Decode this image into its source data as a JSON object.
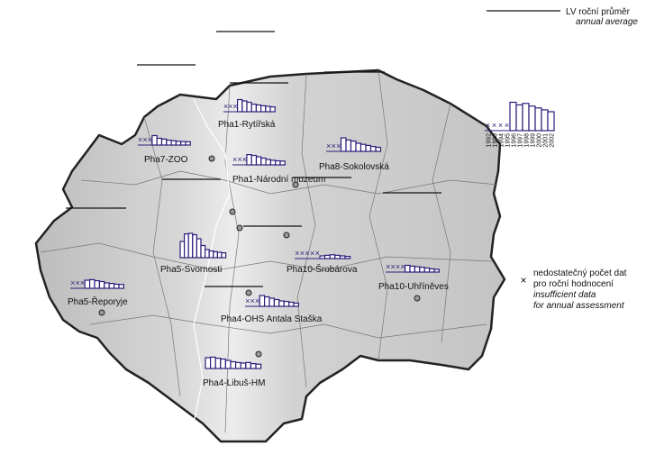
{
  "legend": {
    "line_label": "LV roční průměr",
    "line_label_en": "annual average",
    "years": [
      "1992",
      "1993",
      "1994",
      "1995",
      "1996",
      "1997",
      "1998",
      "1999",
      "2000",
      "2001",
      "2002"
    ],
    "sample_values": [
      null,
      null,
      null,
      null,
      75,
      68,
      72,
      65,
      60,
      55,
      50
    ],
    "no_data_label": [
      "nedostatečný počet dat",
      "pro roční hodnocení"
    ],
    "no_data_label_en": [
      "insufficient data",
      "for annual assessment"
    ]
  },
  "stations": [
    {
      "name": "Pha1-Rytířská",
      "values": [
        null,
        null,
        null,
        45,
        40,
        35,
        28,
        25,
        22,
        20,
        18
      ]
    },
    {
      "name": "Pha7-ZOO",
      "values": [
        null,
        null,
        null,
        35,
        25,
        22,
        18,
        16,
        14,
        13,
        12
      ]
    },
    {
      "name": "Pha8-Sokolovská",
      "values": [
        null,
        null,
        null,
        50,
        42,
        38,
        30,
        26,
        22,
        18,
        15
      ]
    },
    {
      "name": "Pha1-Národní muzeum",
      "values": [
        null,
        null,
        null,
        38,
        35,
        30,
        25,
        20,
        17,
        15,
        14
      ]
    },
    {
      "name": "Pha5-Svornosti",
      "values": [
        60,
        88,
        90,
        85,
        70,
        45,
        30,
        25,
        22,
        20,
        18
      ]
    },
    {
      "name": "Pha10-Šrobárova",
      "values": [
        null,
        null,
        null,
        null,
        null,
        10,
        12,
        14,
        12,
        10,
        8
      ]
    },
    {
      "name": "Pha10-Uhříněves",
      "values": [
        null,
        null,
        null,
        null,
        25,
        22,
        20,
        18,
        15,
        12,
        10
      ]
    },
    {
      "name": "Pha5-Řeporyje",
      "values": [
        null,
        null,
        null,
        30,
        32,
        28,
        25,
        20,
        18,
        15,
        14
      ]
    },
    {
      "name": "Pha4-OHS Antala Staška",
      "values": [
        null,
        null,
        null,
        40,
        35,
        30,
        25,
        20,
        18,
        15,
        12
      ]
    },
    {
      "name": "Pha4-Libuš-HM",
      "values": [
        40,
        42,
        38,
        35,
        30,
        25,
        22,
        20,
        22,
        18,
        16
      ]
    }
  ]
}
